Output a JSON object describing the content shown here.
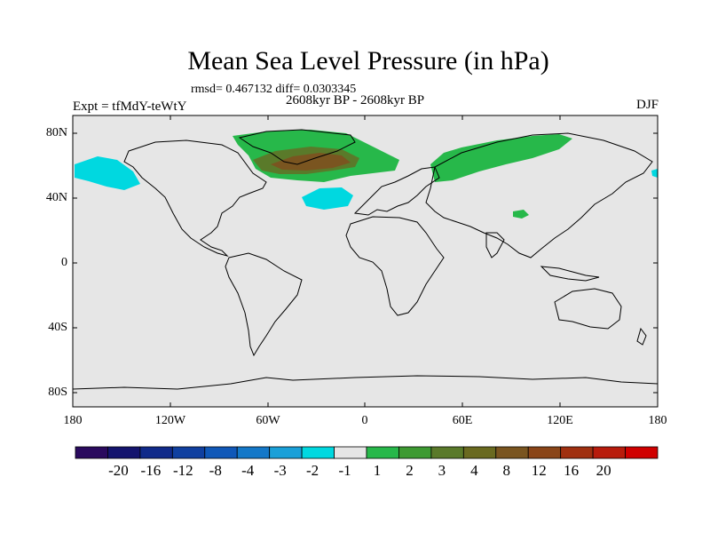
{
  "title": "Mean Sea Level Pressure (in hPa)",
  "stats_line": "rmsd= 0.467132 diff= 0.0303345",
  "period_line": "2608kyr BP - 2608kyr BP",
  "experiment": "Expt = tfMdY-teWtY",
  "season": "DJF",
  "colors": {
    "background": "#e6e6e6",
    "land_outline": "#000000",
    "neg1": "#00d8e0",
    "pos1": "#27b84a",
    "pos2": "#5a7a2a",
    "pos3": "#7a5520"
  },
  "axes": {
    "y_ticks": [
      "80N",
      "40N",
      "0",
      "40S",
      "80S"
    ],
    "x_ticks": [
      "180",
      "120W",
      "60W",
      "0",
      "60E",
      "120E",
      "180"
    ]
  },
  "colorbar": {
    "colors": [
      "#2a0a5e",
      "#14146e",
      "#102a8a",
      "#1040a0",
      "#1058b8",
      "#1478c8",
      "#1aa0d8",
      "#00d8e0",
      "#e6e6e6",
      "#27b84a",
      "#3d9a32",
      "#5a7a2a",
      "#6a6a20",
      "#7a5520",
      "#8a4518",
      "#a03010",
      "#b81c0c",
      "#d00000"
    ],
    "labels": [
      "-20",
      "-16",
      "-12",
      "-8",
      "-4",
      "-3",
      "-2",
      "-1",
      "1",
      "2",
      "3",
      "4",
      "8",
      "12",
      "16",
      "20"
    ]
  }
}
